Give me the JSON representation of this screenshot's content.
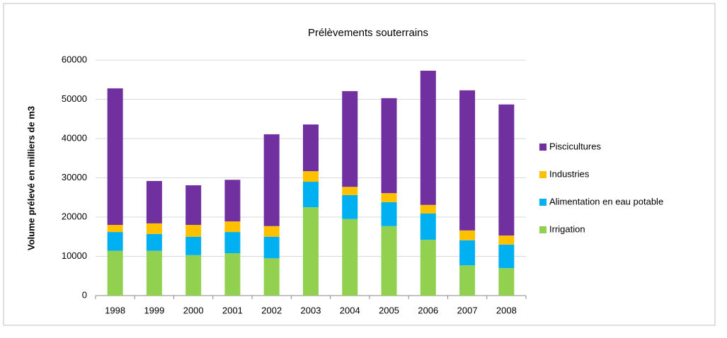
{
  "chart_data": {
    "type": "stacked_bar",
    "title": "Prélèvements souterrains",
    "y_label": "Volume prélevé en milliers de m3",
    "categories": [
      "1998",
      "1999",
      "2000",
      "2001",
      "2002",
      "2003",
      "2004",
      "2005",
      "2006",
      "2007",
      "2008"
    ],
    "series": [
      {
        "name": "Irrigation",
        "color": "#92d050",
        "values": [
          11400,
          11400,
          10300,
          10800,
          9500,
          22500,
          19500,
          17700,
          14200,
          7700,
          7000
        ]
      },
      {
        "name": "Alimentation en eau potable",
        "color": "#00b0f0",
        "values": [
          4800,
          4300,
          4700,
          5400,
          5500,
          6500,
          6100,
          6100,
          6700,
          6400,
          6000
        ]
      },
      {
        "name": "Industries",
        "color": "#ffc000",
        "values": [
          1800,
          2700,
          3000,
          2700,
          2700,
          2700,
          2100,
          2300,
          2200,
          2500,
          2300
        ]
      },
      {
        "name": "Piscicultures",
        "color": "#7030a0",
        "values": [
          34800,
          10800,
          10100,
          10600,
          23400,
          11900,
          24400,
          24200,
          34200,
          35700,
          33400
        ]
      }
    ],
    "ylim": [
      0,
      60000
    ],
    "yticks": [
      0,
      10000,
      20000,
      30000,
      40000,
      50000,
      60000
    ],
    "grid": true,
    "legend": "right"
  }
}
